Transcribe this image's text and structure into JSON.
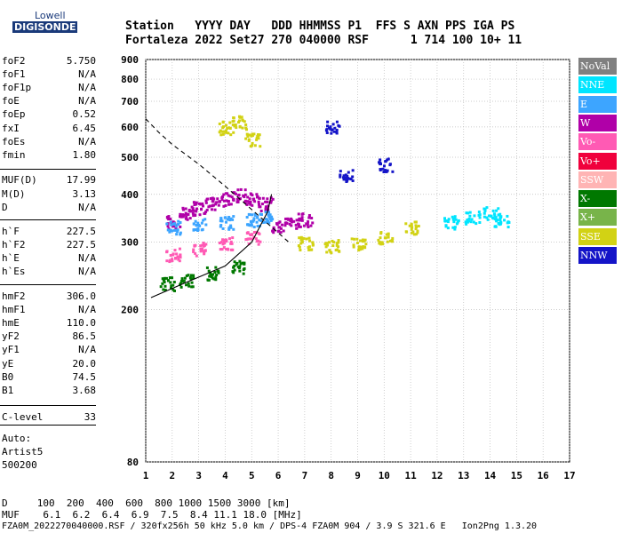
{
  "header": {
    "line1": "Station   YYYY DAY   DDD HHMMSS P1  FFS S AXN PPS IGA PS",
    "line2": "Fortaleza 2022 Set27 270 040000 RSF      1 714 100 10+ 11"
  },
  "logo": {
    "brand": "Lowell",
    "product": "DIGISONDE"
  },
  "params": [
    {
      "name": "foF2",
      "value": "5.750"
    },
    {
      "name": "foF1",
      "value": "N/A"
    },
    {
      "name": "foF1p",
      "value": "N/A"
    },
    {
      "name": "foE",
      "value": "N/A"
    },
    {
      "name": "foEp",
      "value": "0.52"
    },
    {
      "name": "fxI",
      "value": "6.45"
    },
    {
      "name": "foEs",
      "value": "N/A"
    },
    {
      "name": "fmin",
      "value": "1.80"
    },
    {
      "name": "MUF(D)",
      "value": "17.99"
    },
    {
      "name": "M(D)",
      "value": "3.13"
    },
    {
      "name": "D",
      "value": "N/A"
    },
    {
      "name": "h`F",
      "value": "227.5"
    },
    {
      "name": "h`F2",
      "value": "227.5"
    },
    {
      "name": "h`E",
      "value": "N/A"
    },
    {
      "name": "h`Es",
      "value": "N/A"
    },
    {
      "name": "hmF2",
      "value": "306.0"
    },
    {
      "name": "hmF1",
      "value": "N/A"
    },
    {
      "name": "hmE",
      "value": "110.0"
    },
    {
      "name": "yF2",
      "value": "86.5"
    },
    {
      "name": "yF1",
      "value": "N/A"
    },
    {
      "name": "yE",
      "value": "20.0"
    },
    {
      "name": "B0",
      "value": "74.5"
    },
    {
      "name": "B1",
      "value": "3.68"
    },
    {
      "name": "C-level",
      "value": "33"
    }
  ],
  "autoscale": {
    "line1": "Auto:",
    "line2": "Artist5",
    "line3": "500200"
  },
  "legend": [
    {
      "label": "NoVal",
      "color": "#808080"
    },
    {
      "label": "NNE",
      "color": "#00e5ff"
    },
    {
      "label": "E",
      "color": "#3da5ff"
    },
    {
      "label": "W",
      "color": "#b000a8"
    },
    {
      "label": "Vo-",
      "color": "#ff5ab4"
    },
    {
      "label": "Vo+",
      "color": "#f0003c"
    },
    {
      "label": "SSW",
      "color": "#ffb4b4"
    },
    {
      "label": "X-",
      "color": "#007800"
    },
    {
      "label": "X+",
      "color": "#78b44a"
    },
    {
      "label": "SSE",
      "color": "#d2d214"
    },
    {
      "label": "NNW",
      "color": "#1414c8"
    }
  ],
  "bottom": {
    "d_line": "D     100  200  400  600  800 1000 1500 3000 [km]",
    "muf_line": "MUF    6.1  6.2  6.4  6.9  7.5  8.4 11.1 18.0 [MHz]",
    "info_line": "FZA0M_2022270040000.RSF / 320fx256h 50 kHz 5.0 km / DPS-4 FZA0M 904 / 3.9 S 321.6 E   Ion2Png 1.3.20"
  },
  "chart_data": {
    "type": "scatter",
    "title": "",
    "xlabel": "",
    "ylabel": "",
    "xlim": [
      1,
      17
    ],
    "ylim": [
      80,
      900
    ],
    "y_scale": "log",
    "x_ticks": [
      1,
      2,
      3,
      4,
      5,
      6,
      7,
      8,
      9,
      10,
      11,
      12,
      13,
      14,
      15,
      16,
      17
    ],
    "y_ticks": [
      80,
      200,
      300,
      400,
      500,
      600,
      700,
      800,
      900
    ],
    "grid": true,
    "series": [
      {
        "name": "W",
        "color": "#b000a8",
        "points": [
          [
            2,
            340
          ],
          [
            2.5,
            360
          ],
          [
            3,
            370
          ],
          [
            3.5,
            380
          ],
          [
            4,
            390
          ],
          [
            4.5,
            400
          ],
          [
            5,
            390
          ],
          [
            5.5,
            380
          ],
          [
            6,
            330
          ],
          [
            6.5,
            340
          ],
          [
            7,
            345
          ]
        ]
      },
      {
        "name": "E",
        "color": "#3da5ff",
        "points": [
          [
            2,
            330
          ],
          [
            3,
            335
          ],
          [
            4,
            340
          ],
          [
            5,
            345
          ],
          [
            5.5,
            350
          ]
        ]
      },
      {
        "name": "SSE",
        "color": "#d2d214",
        "points": [
          [
            4,
            600
          ],
          [
            4.5,
            620
          ],
          [
            5,
            560
          ],
          [
            7,
            300
          ],
          [
            8,
            295
          ],
          [
            9,
            300
          ],
          [
            10,
            310
          ],
          [
            11,
            330
          ]
        ]
      },
      {
        "name": "NNE",
        "color": "#00e5ff",
        "points": [
          [
            12.5,
            340
          ],
          [
            13.3,
            350
          ],
          [
            14,
            360
          ],
          [
            14.4,
            345
          ]
        ]
      },
      {
        "name": "NNW",
        "color": "#1414c8",
        "points": [
          [
            8,
            600
          ],
          [
            8.5,
            450
          ],
          [
            10,
            480
          ]
        ]
      },
      {
        "name": "Vo-",
        "color": "#ff5ab4",
        "points": [
          [
            2,
            280
          ],
          [
            3,
            290
          ],
          [
            4,
            300
          ],
          [
            5,
            310
          ]
        ]
      },
      {
        "name": "X-",
        "color": "#007800",
        "points": [
          [
            1.8,
            235
          ],
          [
            2.5,
            240
          ],
          [
            3.5,
            250
          ],
          [
            4.5,
            260
          ]
        ]
      }
    ],
    "lines": [
      {
        "name": "virtual height",
        "style": "solid",
        "points": [
          [
            1.2,
            215
          ],
          [
            2.5,
            235
          ],
          [
            4,
            260
          ],
          [
            5,
            300
          ],
          [
            5.6,
            360
          ],
          [
            5.75,
            400
          ]
        ]
      },
      {
        "name": "extraordinary",
        "style": "dashed",
        "points": [
          [
            1,
            630
          ],
          [
            1.5,
            580
          ],
          [
            2,
            540
          ],
          [
            3,
            480
          ],
          [
            4,
            420
          ],
          [
            5,
            365
          ],
          [
            6.4,
            300
          ]
        ]
      }
    ]
  }
}
